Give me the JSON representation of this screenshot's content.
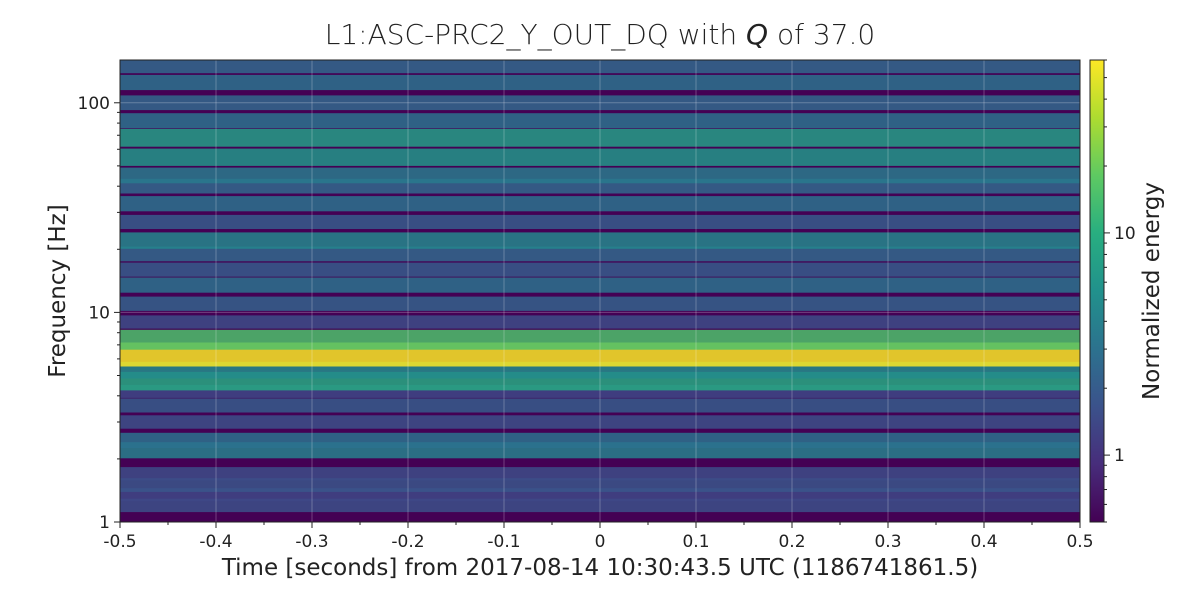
{
  "chart_data": {
    "type": "heatmap",
    "title": {
      "prefix": "L1:ASC-PRC2_Y_OUT_DQ with ",
      "q_symbol": "Q",
      "suffix": " of 37.0"
    },
    "xlabel": "Time [seconds] from 2017-08-14 10:30:43.5 UTC (1186741861.5)",
    "ylabel": "Frequency [Hz]",
    "xlim": [
      -0.5,
      0.5
    ],
    "ylim": [
      1,
      160
    ],
    "yscale": "log",
    "x_ticks": [
      -0.5,
      -0.4,
      -0.3,
      -0.2,
      -0.1,
      0,
      0.1,
      0.2,
      0.3,
      0.4,
      0.5
    ],
    "x_tick_labels": [
      "-0.5",
      "-0.4",
      "-0.3",
      "-0.2",
      "-0.1",
      "0",
      "0.1",
      "0.2",
      "0.3",
      "0.4",
      "0.5"
    ],
    "y_ticks": [
      1,
      10,
      100
    ],
    "y_tick_labels": [
      "1",
      "10",
      "100"
    ],
    "grid": true,
    "colormap": "viridis",
    "colorbar": {
      "label": "Normalized energy",
      "scale": "log",
      "range": [
        0.5,
        60
      ],
      "ticks": [
        1,
        10
      ],
      "tick_labels": [
        "1",
        "10"
      ]
    },
    "energy_bands": [
      {
        "freq_hz": 1.2,
        "energy": 1.6
      },
      {
        "freq_hz": 1.35,
        "energy": 1.4
      },
      {
        "freq_hz": 1.5,
        "energy": 1.8
      },
      {
        "freq_hz": 1.7,
        "energy": 1.5
      },
      {
        "freq_hz": 2.2,
        "energy": 4.0
      },
      {
        "freq_hz": 2.45,
        "energy": 3.0
      },
      {
        "freq_hz": 3.0,
        "energy": 1.6
      },
      {
        "freq_hz": 3.6,
        "energy": 2.0
      },
      {
        "freq_hz": 4.2,
        "energy": 1.4
      },
      {
        "freq_hz": 4.7,
        "energy": 9.0
      },
      {
        "freq_hz": 5.3,
        "energy": 5.0
      },
      {
        "freq_hz": 6.3,
        "energy": 60
      },
      {
        "freq_hz": 7.4,
        "energy": 15.0
      },
      {
        "freq_hz": 9.0,
        "energy": 1.5
      },
      {
        "freq_hz": 11.0,
        "energy": 2.2
      },
      {
        "freq_hz": 13.5,
        "energy": 3.0
      },
      {
        "freq_hz": 16.0,
        "energy": 2.0
      },
      {
        "freq_hz": 19.0,
        "energy": 2.5
      },
      {
        "freq_hz": 22.0,
        "energy": 4.5
      },
      {
        "freq_hz": 27.0,
        "energy": 2.0
      },
      {
        "freq_hz": 33.0,
        "energy": 3.0
      },
      {
        "freq_hz": 40.0,
        "energy": 2.5
      },
      {
        "freq_hz": 45.0,
        "energy": 3.5
      },
      {
        "freq_hz": 55.0,
        "energy": 6.0
      },
      {
        "freq_hz": 68.0,
        "energy": 7.0
      },
      {
        "freq_hz": 82.0,
        "energy": 3.0
      },
      {
        "freq_hz": 100.0,
        "energy": 2.5
      },
      {
        "freq_hz": 125.0,
        "energy": 3.0
      },
      {
        "freq_hz": 150.0,
        "energy": 2.5
      }
    ]
  }
}
